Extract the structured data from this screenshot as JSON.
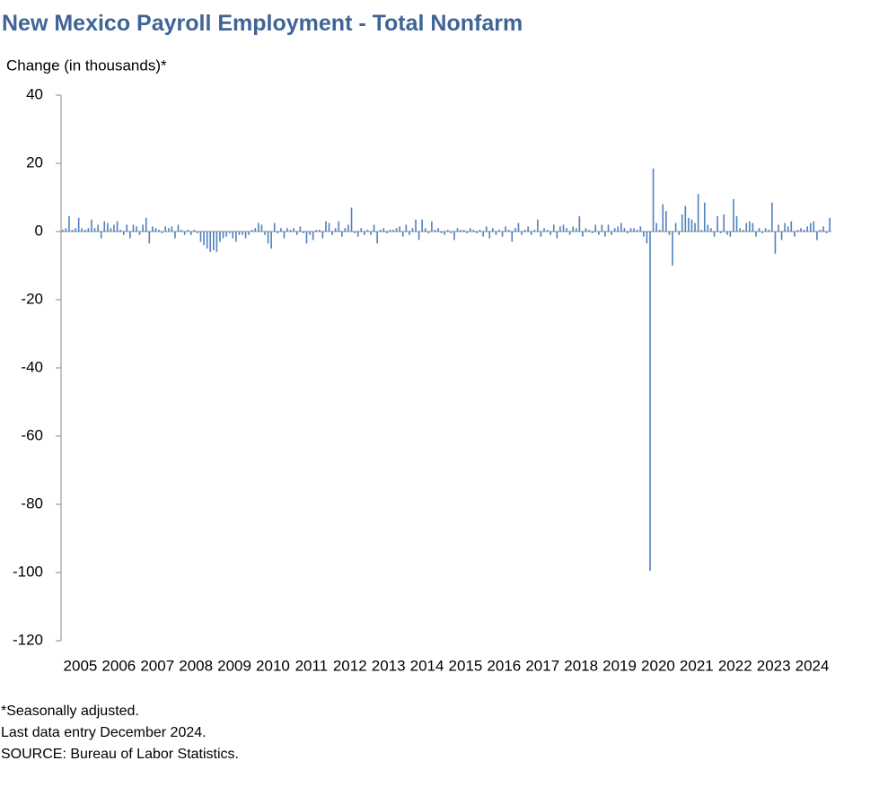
{
  "chart_data": {
    "type": "bar",
    "title": "New Mexico Payroll Employment - Total Nonfarm",
    "y_label": "Change (in thousands)*",
    "color": "#4f81bd",
    "categories": [
      "2005",
      "2006",
      "2007",
      "2008",
      "2009",
      "2010",
      "2011",
      "2012",
      "2013",
      "2014",
      "2015",
      "2016",
      "2017",
      "2018",
      "2019",
      "2020",
      "2021",
      "2022",
      "2023",
      "2024"
    ],
    "values": [
      [
        0.5,
        1,
        4.5,
        0.5,
        1,
        4,
        1,
        0.5,
        1,
        3.5,
        1,
        2
      ],
      [
        -2,
        3,
        2.5,
        1,
        2,
        3,
        0.5,
        -1,
        2,
        -2,
        2,
        1.5
      ],
      [
        -1,
        2,
        4,
        -3.5,
        1.5,
        1,
        0.5,
        -0.5,
        1.5,
        1,
        1.5,
        -2
      ],
      [
        2,
        0.5,
        -1,
        0.5,
        -1,
        0.5,
        -0.5,
        -3,
        -4,
        -5,
        -6,
        -5.5
      ],
      [
        -6,
        -3,
        -2,
        -1.5,
        -0.5,
        -2,
        -3,
        -1,
        -1,
        -2,
        -1,
        0.5
      ],
      [
        1,
        2.5,
        2,
        -1,
        -3.5,
        -5,
        2.5,
        -0.5,
        1,
        -2,
        1,
        0.5
      ],
      [
        1,
        -1,
        1.5,
        -0.5,
        -3.5,
        -1,
        -2.5,
        0.5,
        0.5,
        -2,
        3,
        2.5
      ],
      [
        -1,
        1,
        3,
        -1.5,
        1,
        2,
        7,
        -0.5,
        -1.5,
        1,
        -1,
        0.5
      ],
      [
        -1,
        2,
        -3.5,
        0.5,
        1,
        -0.5,
        0.5,
        0.5,
        1,
        1.5,
        -1.5,
        2
      ],
      [
        -1,
        1,
        3.5,
        -2.5,
        3.5,
        1,
        -0.5,
        3,
        0.5,
        1,
        -0.5,
        -1
      ],
      [
        0.5,
        -0.5,
        -2.5,
        1,
        0.5,
        0.5,
        -0.5,
        1,
        0.5,
        -0.5,
        0.5,
        -1.5
      ],
      [
        1.5,
        -2,
        1,
        -1,
        0.5,
        -1.5,
        1.5,
        0.5,
        -3,
        1,
        2.5,
        -1
      ],
      [
        0.5,
        1.5,
        -1,
        0.5,
        3.5,
        -1.5,
        1,
        0.5,
        -1,
        2,
        -2,
        1.5
      ],
      [
        2,
        1,
        -1,
        1.5,
        1,
        4.5,
        -1.5,
        1,
        0.5,
        -0.5,
        2,
        -1
      ],
      [
        2,
        -1.5,
        2,
        -1,
        1,
        1.5,
        2.5,
        1,
        -0.5,
        1,
        1,
        0.5
      ],
      [
        1.5,
        -1.5,
        -3.5,
        -99.5,
        18.5,
        2.5,
        0.5,
        8,
        6,
        -1,
        -10,
        2.5
      ],
      [
        -1,
        5,
        7.5,
        4,
        3.5,
        2.5,
        11,
        0.5,
        8.5,
        2,
        1,
        -1.5
      ],
      [
        4.5,
        -0.5,
        5,
        -1,
        -1.5,
        9.5,
        4.5,
        1,
        0.5,
        2.5,
        3,
        2.5
      ],
      [
        -1.5,
        1,
        -0.5,
        1,
        0.5,
        8.5,
        -6.5,
        2,
        -2.5,
        2.5,
        1.5,
        3
      ],
      [
        -1.5,
        0.5,
        1,
        0.5,
        1.5,
        2.5,
        3,
        -2.5,
        0.5,
        1.5,
        -0.5,
        4
      ]
    ],
    "ylim": [
      -120,
      40
    ],
    "yticks": [
      40,
      20,
      0,
      -20,
      -40,
      -60,
      -80,
      -100,
      -120
    ],
    "notes": [
      "*Seasonally adjusted.",
      "Last data entry December  2024.",
      "SOURCE: Bureau of Labor Statistics."
    ]
  }
}
